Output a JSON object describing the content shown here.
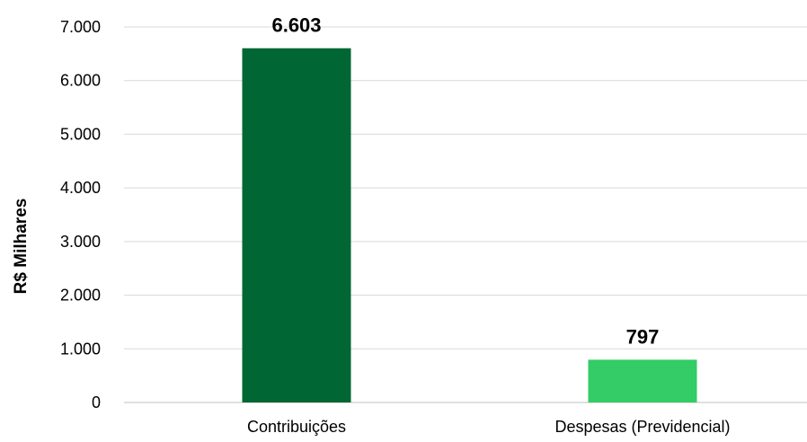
{
  "chart_data": {
    "type": "bar",
    "title": "",
    "xlabel": "",
    "ylabel": "R$ Milhares",
    "categories": [
      "Contribuições",
      "Despesas (Previdencial)"
    ],
    "values": [
      6603,
      797
    ],
    "value_labels": [
      "6.603",
      "797"
    ],
    "bar_colors": [
      "#006633",
      "#33CC66"
    ],
    "ylim": [
      0,
      7000
    ],
    "yticks": [
      0,
      1000,
      2000,
      3000,
      4000,
      5000,
      6000,
      7000
    ],
    "ytick_labels": [
      "0",
      "1.000",
      "2.000",
      "3.000",
      "4.000",
      "5.000",
      "6.000",
      "7.000"
    ],
    "grid": true,
    "legend": "none"
  }
}
